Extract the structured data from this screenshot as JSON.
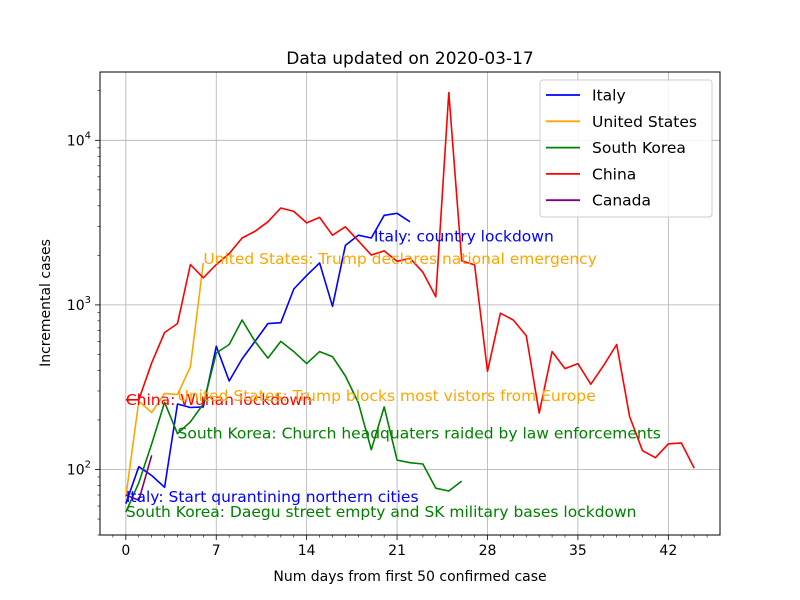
{
  "chart_data": {
    "type": "line",
    "title": "Data updated on 2020-03-17",
    "xlabel": "Num days from first 50 confirmed case",
    "ylabel": "Incremental cases",
    "xlim": [
      -2,
      46
    ],
    "ylim": [
      40,
      26000
    ],
    "yscale": "log",
    "grid": true,
    "legend_position": "top-right",
    "x_ticks": [
      0,
      7,
      14,
      21,
      28,
      35,
      42
    ],
    "y_ticks": [
      {
        "value": 100,
        "base": "10",
        "exp": "2"
      },
      {
        "value": 1000,
        "base": "10",
        "exp": "3"
      },
      {
        "value": 10000,
        "base": "10",
        "exp": "4"
      }
    ],
    "series": [
      {
        "name": "Italy",
        "color": "#0000ff",
        "x": [
          0,
          1,
          2,
          3,
          4,
          5,
          6,
          7,
          8,
          9,
          10,
          11,
          12,
          13,
          14,
          15,
          16,
          17,
          18,
          19,
          20,
          21,
          22
        ],
        "y": [
          62,
          104,
          92,
          78,
          250,
          238,
          240,
          560,
          345,
          470,
          600,
          770,
          780,
          1250,
          1510,
          1800,
          980,
          2300,
          2650,
          2550,
          3500,
          3600,
          3200
        ]
      },
      {
        "name": "United States",
        "color": "#ffa500",
        "x": [
          0,
          1,
          2,
          3,
          4,
          5,
          6
        ],
        "y": [
          68,
          260,
          222,
          290,
          285,
          420,
          1800
        ]
      },
      {
        "name": "South Korea",
        "color": "#008000",
        "x": [
          0,
          1,
          2,
          3,
          4,
          5,
          6,
          7,
          8,
          9,
          10,
          11,
          12,
          13,
          14,
          15,
          16,
          17,
          18,
          19,
          20,
          21,
          22,
          23,
          24,
          25,
          26
        ],
        "y": [
          55,
          83,
          143,
          256,
          165,
          195,
          250,
          510,
          575,
          810,
          600,
          475,
          600,
          520,
          440,
          520,
          485,
          370,
          255,
          132,
          240,
          114,
          110,
          108,
          77,
          74,
          85
        ]
      },
      {
        "name": "China",
        "color": "#ff0000",
        "x": [
          0,
          1,
          2,
          3,
          4,
          5,
          6,
          7,
          8,
          9,
          10,
          11,
          12,
          13,
          14,
          15,
          16,
          17,
          18,
          19,
          20,
          21,
          22,
          23,
          24,
          25,
          26,
          27,
          28,
          29,
          30,
          31,
          32,
          33,
          34,
          35,
          36,
          37,
          38,
          39,
          40,
          41,
          42,
          43,
          44
        ],
        "y": [
          265,
          265,
          445,
          680,
          770,
          1760,
          1460,
          1760,
          2050,
          2550,
          2800,
          3200,
          3880,
          3700,
          3150,
          3400,
          2650,
          2980,
          2450,
          2010,
          2130,
          1840,
          1920,
          1580,
          1120,
          19500,
          1850,
          1750,
          395,
          890,
          810,
          650,
          220,
          520,
          410,
          440,
          330,
          430,
          575,
          210,
          130,
          118,
          143,
          145,
          102
        ]
      },
      {
        "name": "Canada",
        "color": "#800080",
        "x": [
          0,
          1,
          2
        ],
        "y": [
          70,
          65,
          122
        ]
      }
    ],
    "annotations": [
      {
        "text": "Italy: country lockdown",
        "x": 19.2,
        "y": 2600,
        "color": "#0000ff"
      },
      {
        "text": "United States: Trump declares national emergency",
        "x": 6,
        "y": 1900,
        "color": "#ffa500"
      },
      {
        "text": "China: Wuhan lockdown",
        "x": 0,
        "y": 265,
        "color": "#ff0000"
      },
      {
        "text": "United States: Trump blocks most vistors from Europe",
        "x": 4,
        "y": 280,
        "color": "#ffa500"
      },
      {
        "text": "South Korea: Church headquaters raided by law enforcements",
        "x": 4,
        "y": 165,
        "color": "#008000"
      },
      {
        "text": "Italy: Start qurantining northern cities",
        "x": 0,
        "y": 68,
        "color": "#0000ff"
      },
      {
        "text": "South Korea: Daegu street empty and SK military bases lockdown",
        "x": 0,
        "y": 55,
        "color": "#008000"
      }
    ]
  }
}
